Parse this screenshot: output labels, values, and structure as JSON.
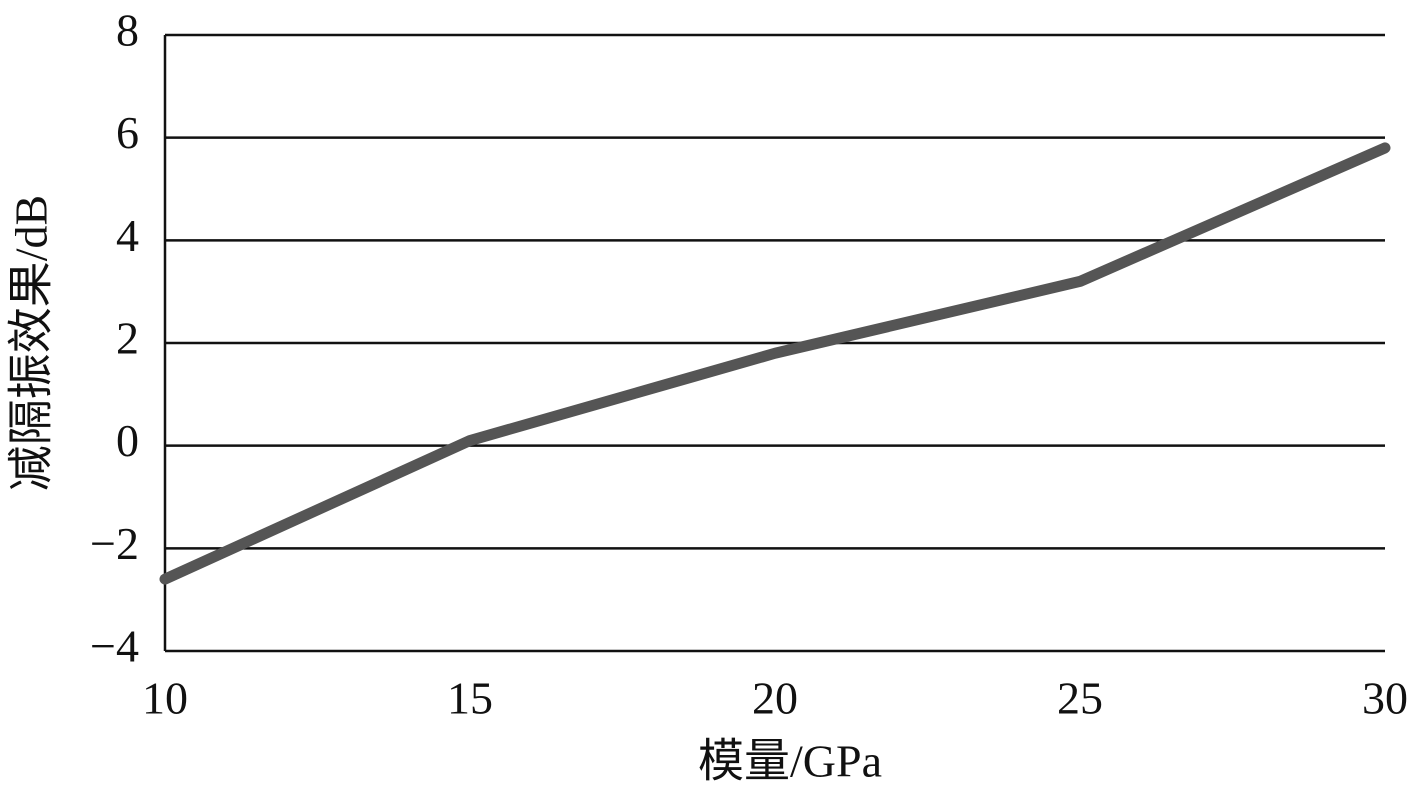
{
  "chart_data": {
    "type": "line",
    "x_label": "模量/GPa",
    "y_label": "减隔振效果/dB",
    "x": [
      10,
      15,
      20,
      25,
      30
    ],
    "series": [
      {
        "name": "减隔振效果",
        "color": "#555555",
        "values": [
          -2.6,
          0.1,
          1.8,
          3.2,
          5.8
        ]
      }
    ],
    "xlim": [
      10,
      30
    ],
    "xticks": [
      10,
      15,
      20,
      25,
      30
    ],
    "ylim": [
      -4,
      8
    ],
    "yticks": [
      {
        "value": -4,
        "label": "−4"
      },
      {
        "value": -2,
        "label": "−2"
      },
      0,
      2,
      4,
      6,
      8
    ],
    "grid": true
  }
}
